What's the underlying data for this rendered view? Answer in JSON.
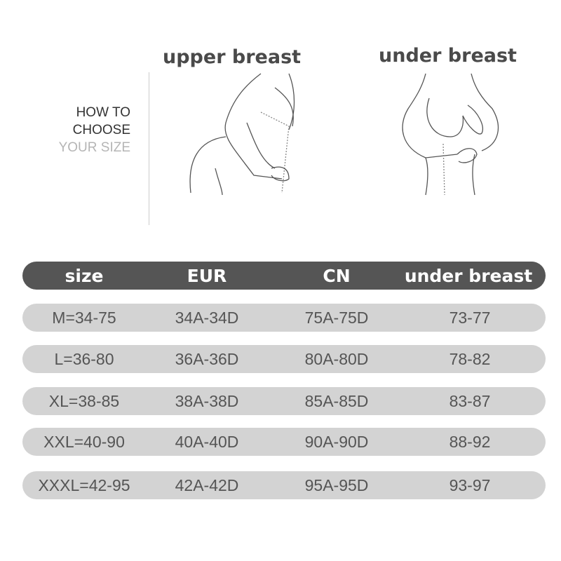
{
  "guide": {
    "line1": "HOW TO",
    "line2": "CHOOSE",
    "line3": "YOUR SIZE"
  },
  "illustrations": [
    {
      "title": "upper breast",
      "icon": "upper-breast-measure-illustration"
    },
    {
      "title": "under breast",
      "icon": "under-breast-measure-illustration"
    }
  ],
  "table": {
    "headers": [
      "size",
      "EUR",
      "CN",
      "under breast"
    ],
    "rows": [
      [
        "M=34-75",
        "34A-34D",
        "75A-75D",
        "73-77"
      ],
      [
        "L=36-80",
        "36A-36D",
        "80A-80D",
        "78-82"
      ],
      [
        "XL=38-85",
        "38A-38D",
        "85A-85D",
        "83-87"
      ],
      [
        "XXL=40-90",
        "40A-40D",
        "90A-90D",
        "88-92"
      ],
      [
        "XXXL=42-95",
        "42A-42D",
        "95A-95D",
        "93-97"
      ]
    ],
    "header_color": "#555555",
    "row_color": "#d3d3d3"
  }
}
